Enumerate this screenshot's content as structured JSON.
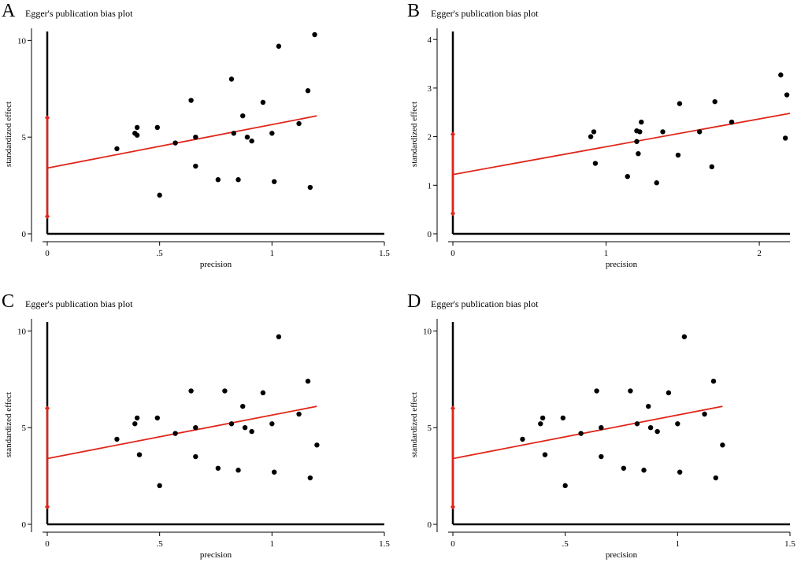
{
  "colors": {
    "fit_line": "#e0261a",
    "ci_bar": "#e0261a",
    "points": "#000000",
    "axes": "#000000"
  },
  "chart_data": [
    {
      "type": "scatter",
      "panel": "A",
      "title": "Egger's publication bias plot",
      "xlabel": "precision",
      "ylabel": "standardized effect",
      "xlim": [
        0,
        1.5
      ],
      "ylim": [
        0,
        10.3
      ],
      "xticks": [
        0,
        0.5,
        1,
        1.5
      ],
      "xtick_labels": [
        "0",
        ".5",
        "1",
        "1.5"
      ],
      "yticks": [
        0,
        5,
        10
      ],
      "ytick_labels": [
        "0",
        "5",
        "10"
      ],
      "points": [
        [
          0.31,
          4.4
        ],
        [
          0.39,
          5.2
        ],
        [
          0.4,
          5.5
        ],
        [
          0.4,
          5.1
        ],
        [
          0.49,
          5.5
        ],
        [
          0.5,
          2.0
        ],
        [
          0.57,
          4.7
        ],
        [
          0.64,
          6.9
        ],
        [
          0.66,
          5.0
        ],
        [
          0.66,
          3.5
        ],
        [
          0.76,
          2.8
        ],
        [
          0.82,
          8.0
        ],
        [
          0.83,
          5.2
        ],
        [
          0.85,
          2.8
        ],
        [
          0.87,
          6.1
        ],
        [
          0.89,
          5.0
        ],
        [
          0.91,
          4.8
        ],
        [
          0.96,
          6.8
        ],
        [
          1.0,
          5.2
        ],
        [
          1.01,
          2.7
        ],
        [
          1.03,
          9.7
        ],
        [
          1.12,
          5.7
        ],
        [
          1.16,
          7.4
        ],
        [
          1.17,
          2.4
        ],
        [
          1.19,
          10.3
        ]
      ],
      "fit_line": [
        [
          0,
          3.4
        ],
        [
          1.2,
          6.1
        ]
      ],
      "intercept_ci": [
        0.9,
        6.0
      ]
    },
    {
      "type": "scatter",
      "panel": "B",
      "title": "Egger's publication bias plot",
      "xlabel": "precision",
      "ylabel": "standardized effect",
      "xlim": [
        0,
        2.2
      ],
      "ylim": [
        0,
        4.1
      ],
      "xticks": [
        0,
        1,
        2
      ],
      "xtick_labels": [
        "0",
        "1",
        "2"
      ],
      "yticks": [
        0,
        1,
        2,
        3,
        4
      ],
      "ytick_labels": [
        "0",
        "1",
        "2",
        "3",
        "4"
      ],
      "points": [
        [
          0.9,
          2.0
        ],
        [
          0.92,
          2.1
        ],
        [
          0.93,
          1.45
        ],
        [
          1.14,
          1.18
        ],
        [
          1.2,
          1.9
        ],
        [
          1.2,
          2.12
        ],
        [
          1.21,
          1.65
        ],
        [
          1.22,
          2.1
        ],
        [
          1.23,
          2.3
        ],
        [
          1.33,
          1.05
        ],
        [
          1.37,
          2.1
        ],
        [
          1.47,
          1.62
        ],
        [
          1.48,
          2.68
        ],
        [
          1.61,
          2.1
        ],
        [
          1.69,
          1.38
        ],
        [
          1.71,
          2.72
        ],
        [
          1.82,
          2.3
        ],
        [
          2.14,
          3.27
        ],
        [
          2.17,
          1.97
        ],
        [
          2.18,
          2.86
        ]
      ],
      "fit_line": [
        [
          0,
          1.22
        ],
        [
          2.2,
          2.48
        ]
      ],
      "intercept_ci": [
        0.42,
        2.05
      ]
    },
    {
      "type": "scatter",
      "panel": "C",
      "title": "Egger's publication bias plot",
      "xlabel": "precision",
      "ylabel": "standardized effect",
      "xlim": [
        0,
        1.5
      ],
      "ylim": [
        0,
        10.3
      ],
      "xticks": [
        0,
        0.5,
        1,
        1.5
      ],
      "xtick_labels": [
        "0",
        ".5",
        "1",
        "1.5"
      ],
      "yticks": [
        0,
        5,
        10
      ],
      "ytick_labels": [
        "0",
        "5",
        "10"
      ],
      "points": [
        [
          0.31,
          4.4
        ],
        [
          0.39,
          5.2
        ],
        [
          0.4,
          5.5
        ],
        [
          0.41,
          3.6
        ],
        [
          0.49,
          5.5
        ],
        [
          0.5,
          2.0
        ],
        [
          0.57,
          4.7
        ],
        [
          0.64,
          6.9
        ],
        [
          0.66,
          5.0
        ],
        [
          0.66,
          3.5
        ],
        [
          0.76,
          2.9
        ],
        [
          0.79,
          6.9
        ],
        [
          0.82,
          5.2
        ],
        [
          0.85,
          2.8
        ],
        [
          0.87,
          6.1
        ],
        [
          0.88,
          5.0
        ],
        [
          0.91,
          4.8
        ],
        [
          0.96,
          6.8
        ],
        [
          1.0,
          5.2
        ],
        [
          1.01,
          2.7
        ],
        [
          1.03,
          9.7
        ],
        [
          1.12,
          5.7
        ],
        [
          1.16,
          7.4
        ],
        [
          1.17,
          2.4
        ],
        [
          1.2,
          4.1
        ]
      ],
      "fit_line": [
        [
          0,
          3.4
        ],
        [
          1.2,
          6.1
        ]
      ],
      "intercept_ci": [
        0.9,
        6.0
      ]
    },
    {
      "type": "scatter",
      "panel": "D",
      "title": "Egger's publication bias plot",
      "xlabel": "precision",
      "ylabel": "standardized effect",
      "xlim": [
        0,
        1.5
      ],
      "ylim": [
        0,
        10.3
      ],
      "xticks": [
        0,
        0.5,
        1,
        1.5
      ],
      "xtick_labels": [
        "0",
        ".5",
        "1",
        "1.5"
      ],
      "yticks": [
        0,
        5,
        10
      ],
      "ytick_labels": [
        "0",
        "5",
        "10"
      ],
      "points": [
        [
          0.31,
          4.4
        ],
        [
          0.39,
          5.2
        ],
        [
          0.4,
          5.5
        ],
        [
          0.41,
          3.6
        ],
        [
          0.49,
          5.5
        ],
        [
          0.5,
          2.0
        ],
        [
          0.57,
          4.7
        ],
        [
          0.64,
          6.9
        ],
        [
          0.66,
          5.0
        ],
        [
          0.66,
          3.5
        ],
        [
          0.76,
          2.9
        ],
        [
          0.79,
          6.9
        ],
        [
          0.82,
          5.2
        ],
        [
          0.85,
          2.8
        ],
        [
          0.87,
          6.1
        ],
        [
          0.88,
          5.0
        ],
        [
          0.91,
          4.8
        ],
        [
          0.96,
          6.8
        ],
        [
          1.0,
          5.2
        ],
        [
          1.01,
          2.7
        ],
        [
          1.03,
          9.7
        ],
        [
          1.12,
          5.7
        ],
        [
          1.16,
          7.4
        ],
        [
          1.17,
          2.4
        ],
        [
          1.2,
          4.1
        ]
      ],
      "fit_line": [
        [
          0,
          3.4
        ],
        [
          1.2,
          6.1
        ]
      ],
      "intercept_ci": [
        0.9,
        6.0
      ]
    }
  ]
}
